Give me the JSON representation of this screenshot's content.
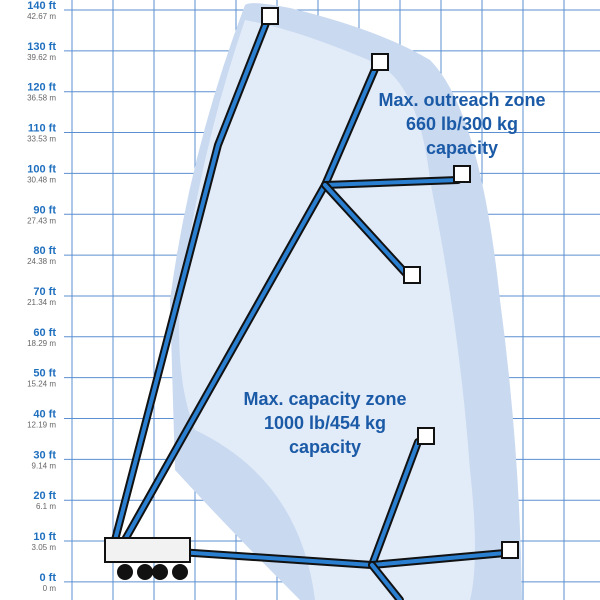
{
  "axis": [
    {
      "ft": "140 ft",
      "m": "42.67 m"
    },
    {
      "ft": "130 ft",
      "m": "39.62 m"
    },
    {
      "ft": "120 ft",
      "m": "36.58 m"
    },
    {
      "ft": "110 ft",
      "m": "33.53 m"
    },
    {
      "ft": "100 ft",
      "m": "30.48 m"
    },
    {
      "ft": "90 ft",
      "m": "27.43 m"
    },
    {
      "ft": "80 ft",
      "m": "24.38 m"
    },
    {
      "ft": "70 ft",
      "m": "21.34 m"
    },
    {
      "ft": "60 ft",
      "m": "18.29 m"
    },
    {
      "ft": "50 ft",
      "m": "15.24 m"
    },
    {
      "ft": "40 ft",
      "m": "12.19 m"
    },
    {
      "ft": "30 ft",
      "m": "9.14 m"
    },
    {
      "ft": "20 ft",
      "m": "6.1 m"
    },
    {
      "ft": "10 ft",
      "m": "3.05 m"
    },
    {
      "ft": "0 ft",
      "m": "0 m"
    }
  ],
  "zones": [
    {
      "lines": [
        "Max. outreach zone",
        "660 lb/300 kg",
        "capacity"
      ]
    },
    {
      "lines": [
        "Max. capacity zone",
        "1000 lb/454 kg",
        "capacity"
      ]
    }
  ]
}
